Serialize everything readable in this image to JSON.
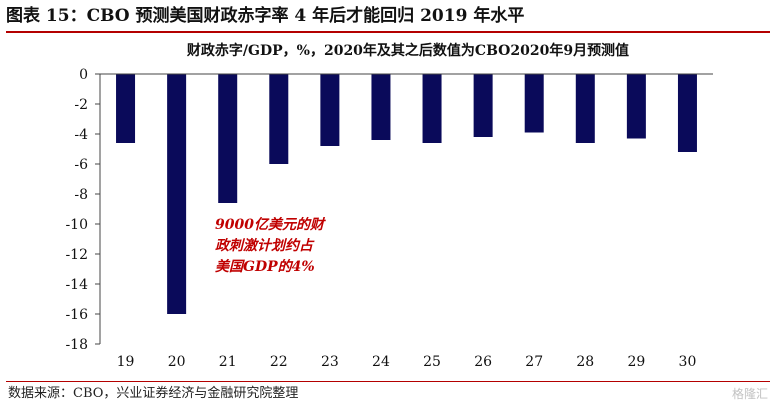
{
  "figure": {
    "title": "图表 15：CBO 预测美国财政赤字率 4 年后才能回归 2019 年水平",
    "source": "数据来源：CBO，兴业证券经济与金融研究院整理",
    "watermark": "格隆汇"
  },
  "colors": {
    "bar": "#0a0a5a",
    "accent_red": "#b40000",
    "annotation": "#c00000"
  },
  "chart_data": {
    "type": "bar",
    "title": "财政赤字/GDP，%，2020年及其之后数值为CBO2020年9月预测值",
    "xlabel": "",
    "ylabel": "",
    "categories": [
      "19",
      "20",
      "21",
      "22",
      "23",
      "24",
      "25",
      "26",
      "27",
      "28",
      "29",
      "30"
    ],
    "values": [
      -4.6,
      -16.0,
      -8.6,
      -6.0,
      -4.8,
      -4.4,
      -4.6,
      -4.2,
      -3.9,
      -4.6,
      -4.3,
      -5.2
    ],
    "ylim": [
      -18,
      0
    ],
    "yticks": [
      "0",
      "-2",
      "-4",
      "-6",
      "-8",
      "-10",
      "-12",
      "-14",
      "-16",
      "-18"
    ],
    "grid": false,
    "annotation": {
      "lines": [
        "9000亿美元的财",
        "政刺激计划约占",
        "美国GDP的4%"
      ]
    }
  }
}
